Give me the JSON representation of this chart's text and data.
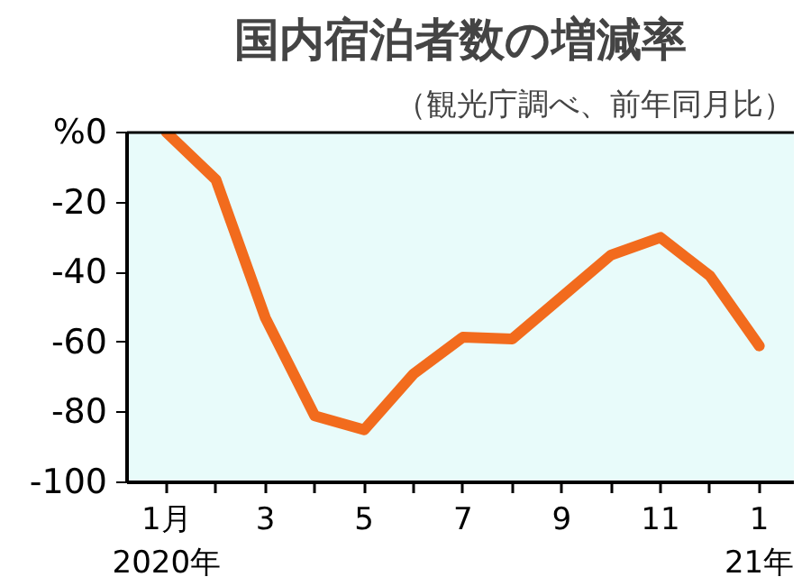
{
  "chart_data": {
    "type": "line",
    "title": "国内宿泊者数の増減率",
    "subtitle": "（観光庁調べ、前年同月比）",
    "categories": [
      "1月\n2020年",
      null,
      "3",
      null,
      "5",
      null,
      "7",
      null,
      "9",
      null,
      "11",
      null,
      "1\n21年"
    ],
    "series": [
      {
        "color": "#f26b1d",
        "values": [
          0,
          -13.5,
          -53,
          -81,
          -85,
          -69,
          -58.5,
          -59,
          -47,
          -35,
          -30,
          -41,
          -61
        ]
      }
    ],
    "ylim": [
      -100,
      0
    ],
    "yticks": [
      {
        "value": 0,
        "label": "%0"
      },
      -20,
      -40,
      -60,
      -80,
      -100
    ],
    "grid": false,
    "marker": "none",
    "line_style": "solid"
  }
}
